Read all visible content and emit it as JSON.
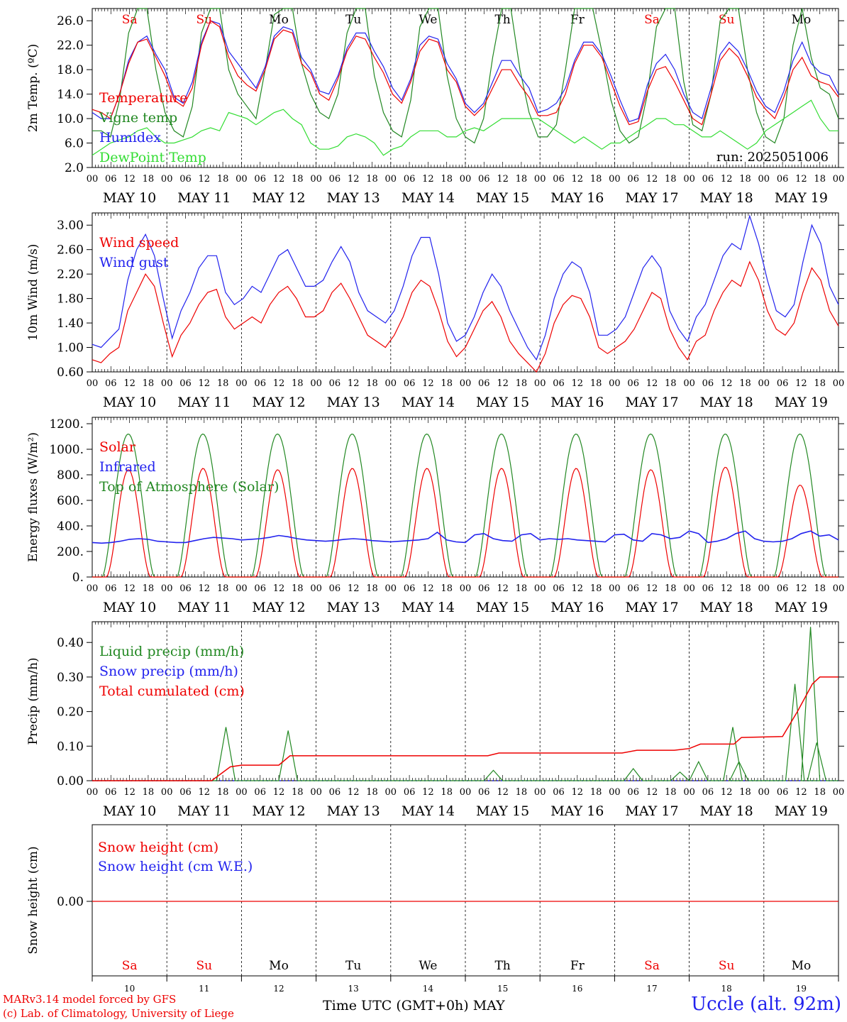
{
  "chart_data": [
    {
      "type": "line",
      "ylabel": "2m Temp. (ºC)",
      "yticks": [
        "2.0",
        "6.0",
        "10.0",
        "14.0",
        "18.0",
        "22.0",
        "26.0"
      ],
      "ylim": [
        2,
        28
      ],
      "run_label": "run: 2025051006",
      "legend": [
        "Temperature",
        "Vigne temp",
        "Humidex",
        "DewPoint Temp"
      ],
      "series": [
        {
          "name": "Temperature",
          "color": "#ee0000",
          "values": [
            11.5,
            11,
            10,
            14,
            19,
            22.5,
            23,
            20,
            17,
            13,
            12,
            15,
            22,
            26,
            25,
            20,
            17,
            15.5,
            14.5,
            18,
            23,
            24.5,
            24,
            19,
            17.5,
            14,
            13,
            16.5,
            21,
            23.5,
            23,
            20,
            17.5,
            14,
            12.5,
            16,
            21,
            23,
            22.5,
            18,
            16,
            12,
            10.5,
            12,
            15,
            18,
            18,
            15.5,
            13.5,
            10.5,
            10.5,
            11,
            14,
            19,
            22,
            22,
            20,
            16,
            12,
            9,
            9.5,
            14.5,
            18,
            18.5,
            16,
            13,
            10,
            9,
            14,
            19.5,
            21.5,
            20,
            17,
            13.5,
            11.5,
            10,
            13.5,
            18,
            20,
            17,
            16,
            15.5,
            13.5
          ]
        },
        {
          "name": "Vigne temp",
          "color": "#228822",
          "values": [
            8,
            8,
            7,
            13,
            24,
            28,
            28,
            18,
            11,
            8,
            7,
            12,
            24,
            29,
            28,
            18,
            14,
            12,
            10,
            18,
            27,
            29,
            28,
            19,
            14,
            11,
            10,
            14,
            24,
            29,
            28,
            17,
            11,
            8,
            7,
            13,
            25,
            29,
            28,
            17,
            10,
            7,
            6,
            10,
            20,
            28,
            29,
            18,
            11,
            7,
            7,
            9,
            18,
            28,
            29,
            29,
            21,
            13,
            8,
            6,
            7,
            14,
            25,
            29,
            28,
            16,
            9,
            8,
            14,
            26,
            29,
            28,
            18,
            11,
            7,
            6,
            10,
            22,
            30,
            20,
            15,
            14,
            10
          ]
        },
        {
          "name": "Humidex",
          "color": "#2222ee",
          "values": [
            11,
            10,
            10,
            14,
            19.5,
            22.5,
            23.5,
            20.5,
            18,
            13.5,
            12.5,
            16,
            22.5,
            26,
            25.5,
            21,
            19,
            17,
            15,
            18.5,
            23.5,
            25,
            24.5,
            20,
            18,
            14.5,
            14,
            17,
            21.5,
            24,
            24,
            21,
            18.5,
            15,
            13,
            16.5,
            22,
            23.5,
            23,
            19,
            16.5,
            12.5,
            11,
            12.5,
            16,
            19.5,
            19.5,
            17,
            15,
            11,
            11.5,
            12.5,
            15,
            19.5,
            22.5,
            22.5,
            20.5,
            17,
            13,
            9.5,
            10,
            15.5,
            19,
            20.5,
            18,
            14,
            11,
            10,
            15,
            20.5,
            22.5,
            21,
            18,
            14.5,
            12,
            11,
            14.5,
            19.5,
            22.5,
            19,
            17.5,
            17,
            14
          ]
        },
        {
          "name": "DewPoint Temp",
          "color": "#33dd33",
          "values": [
            4,
            5,
            6,
            6.5,
            7,
            8,
            8.5,
            7,
            6,
            6,
            6.5,
            7,
            8,
            8.5,
            8,
            11,
            10.5,
            10,
            9,
            10,
            11,
            11.5,
            10,
            9,
            6,
            5,
            5,
            5.5,
            7,
            7.5,
            7,
            6,
            4,
            5,
            5.5,
            7,
            8,
            8,
            8,
            7,
            7,
            8,
            8.5,
            8,
            9,
            10,
            10,
            10,
            10,
            10,
            9,
            8,
            7,
            6,
            7,
            6,
            5,
            6,
            6,
            7,
            8,
            9,
            10,
            10,
            9,
            9,
            8,
            7,
            7,
            8,
            7,
            6,
            5,
            6,
            8,
            9,
            10,
            11,
            12,
            13,
            10,
            8,
            8
          ]
        }
      ]
    },
    {
      "type": "line",
      "ylabel": "10m Wind (m/s)",
      "yticks": [
        "0.60",
        "1.00",
        "1.40",
        "1.80",
        "2.20",
        "2.60",
        "3.00"
      ],
      "ylim": [
        0.6,
        3.2
      ],
      "legend": [
        "Wind speed",
        "Wind gust"
      ],
      "series": [
        {
          "name": "Wind speed",
          "color": "#ee0000",
          "values": [
            0.8,
            0.75,
            0.9,
            1.0,
            1.6,
            1.9,
            2.2,
            2.0,
            1.4,
            0.85,
            1.2,
            1.4,
            1.7,
            1.9,
            1.95,
            1.5,
            1.3,
            1.4,
            1.5,
            1.4,
            1.7,
            1.9,
            2.0,
            1.8,
            1.5,
            1.5,
            1.6,
            1.9,
            2.05,
            1.8,
            1.5,
            1.2,
            1.1,
            1.0,
            1.2,
            1.5,
            1.9,
            2.1,
            2.0,
            1.6,
            1.1,
            0.85,
            1.0,
            1.3,
            1.6,
            1.75,
            1.5,
            1.1,
            0.9,
            0.75,
            0.6,
            0.9,
            1.4,
            1.7,
            1.85,
            1.8,
            1.5,
            1.0,
            0.9,
            1.0,
            1.1,
            1.3,
            1.6,
            1.9,
            1.8,
            1.3,
            1.0,
            0.8,
            1.1,
            1.2,
            1.6,
            1.9,
            2.1,
            2.0,
            2.4,
            2.1,
            1.6,
            1.3,
            1.2,
            1.4,
            1.9,
            2.3,
            2.1,
            1.6,
            1.35
          ]
        },
        {
          "name": "Wind gust",
          "color": "#2222ee",
          "values": [
            1.05,
            1.0,
            1.15,
            1.3,
            2.1,
            2.6,
            2.85,
            2.5,
            1.8,
            1.15,
            1.6,
            1.9,
            2.3,
            2.5,
            2.5,
            1.9,
            1.7,
            1.8,
            2.0,
            1.9,
            2.2,
            2.5,
            2.6,
            2.3,
            2.0,
            2.0,
            2.1,
            2.4,
            2.65,
            2.4,
            1.9,
            1.6,
            1.5,
            1.4,
            1.6,
            2.0,
            2.5,
            2.8,
            2.8,
            2.2,
            1.4,
            1.1,
            1.2,
            1.5,
            1.9,
            2.2,
            2.0,
            1.6,
            1.3,
            1.0,
            0.8,
            1.2,
            1.8,
            2.2,
            2.4,
            2.3,
            1.9,
            1.2,
            1.2,
            1.3,
            1.5,
            1.9,
            2.3,
            2.5,
            2.3,
            1.6,
            1.3,
            1.1,
            1.5,
            1.7,
            2.1,
            2.5,
            2.7,
            2.6,
            3.15,
            2.7,
            2.1,
            1.6,
            1.5,
            1.7,
            2.4,
            3.0,
            2.7,
            2.0,
            1.7
          ]
        }
      ]
    },
    {
      "type": "line",
      "ylabel": "Energy fluxes (W/m²)",
      "yticks": [
        "0.",
        "200.",
        "400.",
        "600.",
        "800.",
        "1000.",
        "1200."
      ],
      "ylim": [
        0,
        1250
      ],
      "legend": [
        "Solar",
        "Infrared",
        "Top of Atmosphere (Solar)"
      ],
      "series": [
        {
          "name": "Solar",
          "color": "#ee0000",
          "peaks": [
            840,
            850,
            840,
            850,
            850,
            850,
            850,
            840,
            860,
            720
          ]
        },
        {
          "name": "Infrared",
          "color": "#2222ee",
          "values": [
            270,
            265,
            270,
            280,
            295,
            300,
            295,
            280,
            275,
            270,
            270,
            285,
            300,
            310,
            305,
            300,
            290,
            295,
            300,
            310,
            325,
            315,
            300,
            290,
            285,
            280,
            285,
            295,
            300,
            295,
            285,
            280,
            275,
            280,
            285,
            290,
            300,
            350,
            290,
            275,
            270,
            330,
            340,
            300,
            285,
            280,
            330,
            340,
            290,
            300,
            295,
            300,
            290,
            285,
            280,
            275,
            330,
            335,
            290,
            280,
            340,
            330,
            300,
            310,
            360,
            340,
            270,
            280,
            300,
            340,
            360,
            300,
            280,
            275,
            280,
            300,
            340,
            360,
            320,
            330,
            290
          ]
        },
        {
          "name": "Top of Atmosphere (Solar)",
          "color": "#228822",
          "peak": 1120
        }
      ]
    },
    {
      "type": "line",
      "ylabel": "Precip (mm/h)",
      "yticks": [
        "0.00",
        "0.10",
        "0.20",
        "0.30",
        "0.40"
      ],
      "ylim": [
        0,
        0.46
      ],
      "legend": [
        "Liquid precip (mm/h)",
        "Snow precip (mm/h)",
        "Total cumulated (cm)"
      ],
      "series": [
        {
          "name": "Liquid precip (mm/h)",
          "color": "#228822"
        },
        {
          "name": "Snow precip (mm/h)",
          "color": "#2222ee"
        },
        {
          "name": "Total cumulated (cm)",
          "color": "#ee0000"
        }
      ]
    },
    {
      "type": "line",
      "ylabel": "Snow height (cm)",
      "yticks": [
        "0.00"
      ],
      "legend": [
        "Snow height (cm)",
        "Snow height (cm W.E.)"
      ],
      "series": [
        {
          "name": "Snow height (cm)",
          "color": "#ee0000",
          "values": [
            0,
            0
          ]
        },
        {
          "name": "Snow height (cm W.E.)",
          "color": "#2222ee",
          "values": [
            0,
            0
          ]
        }
      ]
    }
  ],
  "axis": {
    "hour_ticks": [
      "00",
      "06",
      "12",
      "18"
    ],
    "days": [
      "MAY 10",
      "MAY 11",
      "MAY 12",
      "MAY 13",
      "MAY 14",
      "MAY 15",
      "MAY 16",
      "MAY 17",
      "MAY 18",
      "MAY 19"
    ],
    "weekdays": [
      "Sa",
      "Su",
      "Mo",
      "Tu",
      "We",
      "Th",
      "Fr",
      "Sa",
      "Su",
      "Mo"
    ],
    "weekday_colors": [
      "#ee0000",
      "#ee0000",
      "#000000",
      "#000000",
      "#000000",
      "#000000",
      "#000000",
      "#ee0000",
      "#ee0000",
      "#000000"
    ],
    "day_numbers": [
      "10",
      "11",
      "12",
      "13",
      "14",
      "15",
      "16",
      "17",
      "18",
      "19"
    ]
  },
  "footer": {
    "model_line": "MARv3.14 model forced by GFS",
    "copyright_line": "(c) Lab. of Climatology, University of Liege",
    "time_label": "Time UTC (GMT+0h) MAY",
    "station": "Uccle (alt. 92m)"
  }
}
